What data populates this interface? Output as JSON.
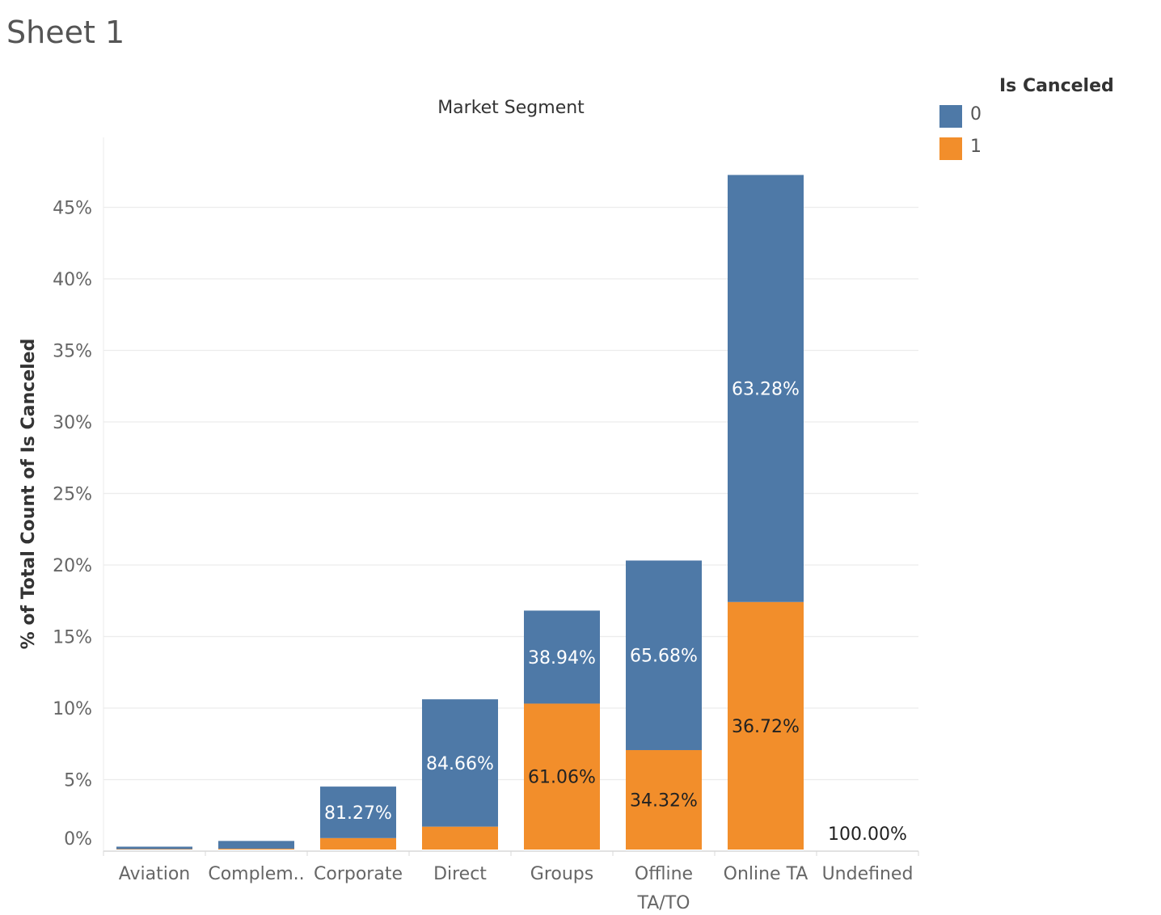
{
  "sheet": {
    "title": "Sheet 1"
  },
  "legend": {
    "title": "Is Canceled",
    "items": [
      {
        "label": "0",
        "color": "#4e79a7"
      },
      {
        "label": "1",
        "color": "#f28e2b"
      }
    ]
  },
  "chart_data": {
    "type": "bar",
    "stacked": true,
    "title": "Market Segment",
    "xlabel": "",
    "ylabel": "% of Total Count of Is Canceled",
    "ylim": [
      0,
      47.5
    ],
    "yticks": [
      0,
      5,
      10,
      15,
      20,
      25,
      30,
      35,
      40,
      45
    ],
    "ytick_labels": [
      "0%",
      "5%",
      "10%",
      "15%",
      "20%",
      "25%",
      "30%",
      "35%",
      "40%",
      "45%"
    ],
    "grid": true,
    "categories": [
      "Aviation",
      "Complem..",
      "Corporate",
      "Direct",
      "Groups",
      "Offline TA/TO",
      "Online TA",
      "Undefined"
    ],
    "series": [
      {
        "name": "0",
        "color": "#4e79a7",
        "values": [
          0.17,
          0.54,
          3.6,
          8.9,
          6.5,
          13.25,
          29.85,
          0.0
        ],
        "labels": [
          "",
          "",
          "81.27%",
          "84.66%",
          "38.94%",
          "65.68%",
          "63.28%",
          ""
        ]
      },
      {
        "name": "1",
        "color": "#f28e2b",
        "values": [
          0.03,
          0.06,
          0.8,
          1.6,
          10.2,
          6.95,
          17.3,
          0.0
        ],
        "labels": [
          "",
          "",
          "",
          "",
          "61.06%",
          "34.32%",
          "36.72%",
          "100.00%"
        ]
      }
    ]
  }
}
